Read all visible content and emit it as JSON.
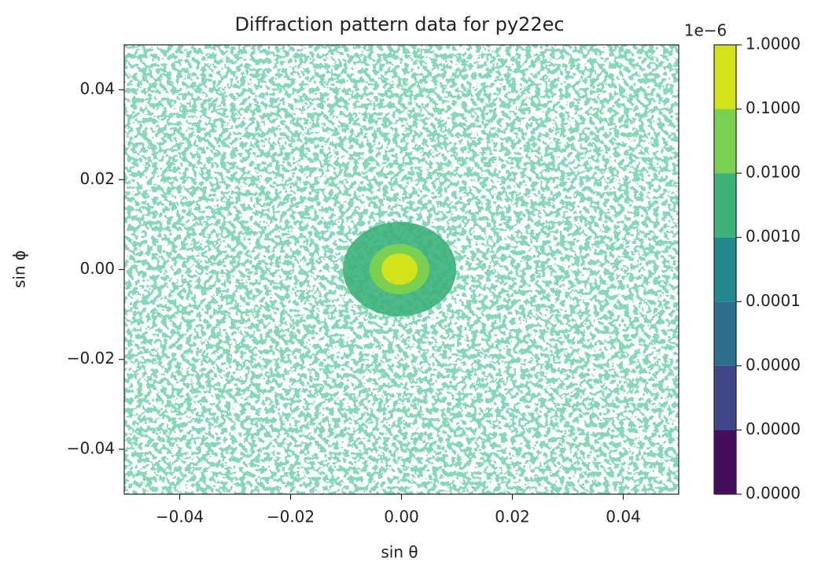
{
  "chart_data": {
    "type": "contourf",
    "title": "Diffraction pattern data for py22ec",
    "x_label": "sin θ",
    "y_label": "sin ϕ",
    "xlim": [
      -0.05,
      0.05
    ],
    "ylim": [
      -0.05,
      0.05
    ],
    "xticks": [
      {
        "value": -0.04,
        "label": "−0.04"
      },
      {
        "value": -0.02,
        "label": "−0.02"
      },
      {
        "value": 0,
        "label": "0.00"
      },
      {
        "value": 0.02,
        "label": "0.02"
      },
      {
        "value": 0.04,
        "label": "0.04"
      }
    ],
    "yticks": [
      {
        "value": -0.04,
        "label": "−0.04"
      },
      {
        "value": -0.02,
        "label": "−0.02"
      },
      {
        "value": 0,
        "label": "0.00"
      },
      {
        "value": 0.02,
        "label": "0.02"
      },
      {
        "value": 0.04,
        "label": "0.04"
      }
    ],
    "colorbar": {
      "log_scale": true,
      "offset_label": "1e−6",
      "lim": [
        1e-07,
        1
      ],
      "ticks": [
        {
          "value": 1,
          "label": "1.0000"
        },
        {
          "value": 0.1,
          "label": "0.1000"
        },
        {
          "value": 0.01,
          "label": "0.0100"
        },
        {
          "value": 0.001,
          "label": "0.0010"
        },
        {
          "value": 0.0001,
          "label": "0.0001"
        },
        {
          "value": 1e-05,
          "label": "0.0000"
        },
        {
          "value": 1e-06,
          "label": "0.0000"
        },
        {
          "value": 1e-07,
          "label": "0.0000"
        }
      ],
      "colors": [
        "#d2e21b",
        "#7ad151",
        "#3cb17a",
        "#23898e",
        "#2e6f8e",
        "#3f4788",
        "#450e5c"
      ]
    }
  }
}
